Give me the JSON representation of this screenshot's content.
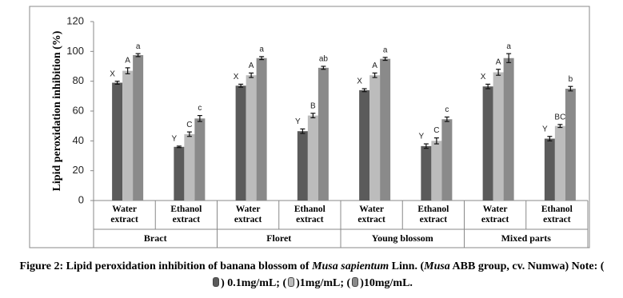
{
  "chart_data": {
    "type": "bar",
    "y_label": "Lipid peroxidation inhibition (%)",
    "categories": [
      "Water extract",
      "Ethanol extract",
      "Water extract",
      "Ethanol extract",
      "Water extract",
      "Ethanol extract",
      "Water extract",
      "Ethanol extract"
    ],
    "groups": [
      "Bract",
      "Floret",
      "Young blossom",
      "Mixed parts"
    ],
    "series": [
      {
        "name": "0.1mg/mL",
        "color": "#5b5b5b",
        "values": [
          79,
          36,
          77,
          46.5,
          74,
          36.5,
          76.5,
          41.5
        ],
        "errors": [
          1,
          0.5,
          1,
          1.5,
          1,
          1.5,
          1.5,
          1.5
        ],
        "labels": [
          "X",
          "Y",
          "X",
          "Y",
          "X",
          "Y",
          "X",
          "Y"
        ]
      },
      {
        "name": "1mg/mL",
        "color": "#bcbcbc",
        "values": [
          87,
          44.5,
          84,
          57,
          84,
          40,
          86,
          50
        ],
        "errors": [
          2,
          1.5,
          1.5,
          1.5,
          1.5,
          2,
          2,
          1
        ],
        "labels": [
          "A",
          "C",
          "A",
          "B",
          "A",
          "C",
          "A",
          "BC"
        ]
      },
      {
        "name": "10mg/mL",
        "color": "#8a8a8a",
        "values": [
          97.5,
          55,
          95.5,
          89,
          95,
          54.5,
          95.5,
          75
        ],
        "errors": [
          1,
          2,
          1,
          1,
          1,
          1.5,
          3,
          1.5
        ],
        "labels": [
          "a",
          "c",
          "a",
          "ab",
          "a",
          "c",
          "a",
          "b"
        ]
      }
    ],
    "ylim": [
      0,
      120
    ],
    "yticks": [
      0,
      20,
      40,
      60,
      80,
      100,
      120
    ],
    "grid": false
  },
  "caption": [
    {
      "text": "Figure 2: Lipid peroxidation inhibition of banana blossom of "
    },
    {
      "text": "Musa sapientum",
      "italic": true
    },
    {
      "text": " Linn. ("
    },
    {
      "text": "Musa",
      "italic": true
    },
    {
      "text": " ABB group, cv. Numwa) Note: ("
    },
    {
      "swatch": 0
    },
    {
      "text": ") "
    },
    {
      "name": 0
    },
    {
      "text": "; ("
    },
    {
      "swatch": 1
    },
    {
      "text": ")"
    },
    {
      "name": 1
    },
    {
      "text": "; ("
    },
    {
      "swatch": 2
    },
    {
      "text": ")"
    },
    {
      "name": 2
    },
    {
      "text": "."
    }
  ]
}
